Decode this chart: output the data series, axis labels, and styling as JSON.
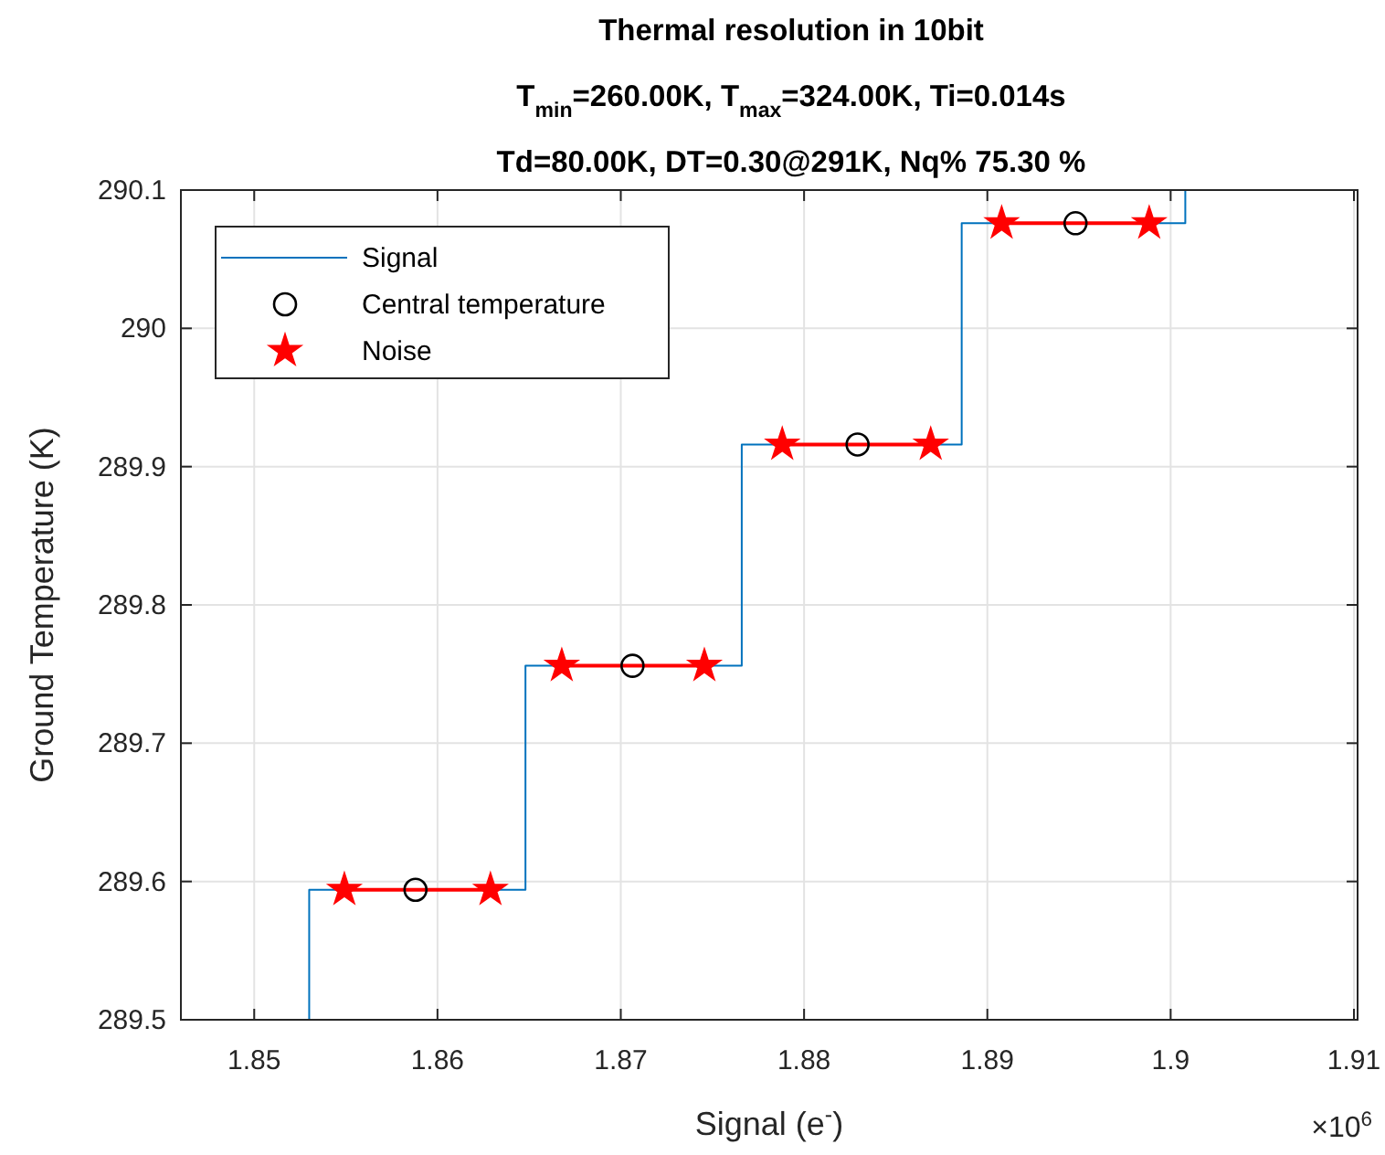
{
  "chart_data": {
    "type": "line",
    "title": "Thermal resolution in 10bit\nT$_{min}$=260.00K,  T$_{max}$=324.00K, Ti=0.014s\nTd=80.00K,  DT=0.30@291K,  Nq% 75.30 %",
    "xlabel": "Signal (e$^{-}$)",
    "ylabel": "Ground Temperature (K)",
    "annotations": [
      "×10$^{6}$"
    ],
    "xlim": [
      1.846,
      1.9102
    ],
    "xticks": [
      1.85,
      1.86,
      1.87,
      1.88,
      1.89,
      1.9,
      1.91
    ],
    "ylim": [
      289.5,
      290.1
    ],
    "yticks": [
      289.5,
      289.6,
      289.7,
      289.8,
      289.9,
      290,
      290.1
    ],
    "grid": true,
    "legend": "top left",
    "series": [
      {
        "name": "Signal",
        "type": "step",
        "color": "#0072bd",
        "marker": "none",
        "x": [
          1.853,
          1.853,
          1.8648,
          1.8766,
          1.8886,
          1.9008
        ],
        "values": [
          289.5,
          289.594,
          289.756,
          289.916,
          290.076,
          290.1
        ]
      },
      {
        "name": "Central temperature",
        "type": "scatter",
        "color": "#000000",
        "marker": "circle",
        "x": [
          1.8588,
          1.87064,
          1.88292,
          1.89481
        ],
        "values": [
          289.594,
          289.756,
          289.916,
          290.076
        ]
      },
      {
        "name": "Noise",
        "color": "#ff0000",
        "marker": "star",
        "x": [
          1.85492,
          1.86289,
          1.8648,
          1.86678,
          1.87456,
          1.8766,
          1.87881,
          1.88691,
          1.8886,
          1.89078,
          1.89883
        ],
        "values": [
          289.594,
          289.594,
          null,
          289.756,
          289.756,
          null,
          289.916,
          289.916,
          null,
          290.076,
          290.076
        ]
      }
    ]
  }
}
